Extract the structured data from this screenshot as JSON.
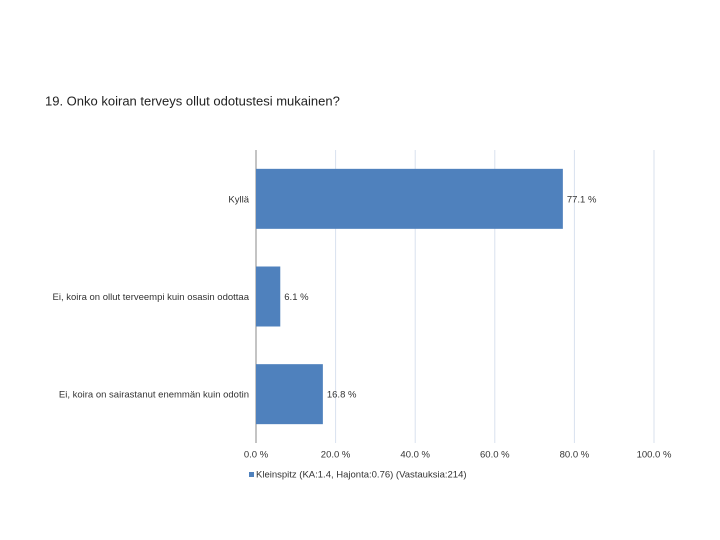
{
  "chart_data": {
    "type": "barh",
    "title": "19. Onko koiran terveys ollut odotustesi mukainen?",
    "categories": [
      "Kyllä",
      "Ei, koira on ollut terveempi kuin osasin odottaa",
      "Ei, koira on sairastanut enemmän kuin odotin"
    ],
    "series": [
      {
        "name": "Kleinspitz (KA:1.4, Hajonta:0.76) (Vastauksia:214)",
        "color": "#4f81bd",
        "values": [
          77.1,
          6.1,
          16.8
        ],
        "value_labels": [
          "77.1 %",
          "6.1 %",
          "16.8 %"
        ]
      }
    ],
    "xlim": [
      0,
      100
    ],
    "xticks": [
      {
        "value": 0,
        "label": "0.0 %"
      },
      {
        "value": 20,
        "label": "20.0 %"
      },
      {
        "value": 40,
        "label": "40.0 %"
      },
      {
        "value": 60,
        "label": "60.0 %"
      },
      {
        "value": 80,
        "label": "80.0 %"
      },
      {
        "value": 100,
        "label": "100.0 %"
      }
    ],
    "grid": true
  }
}
